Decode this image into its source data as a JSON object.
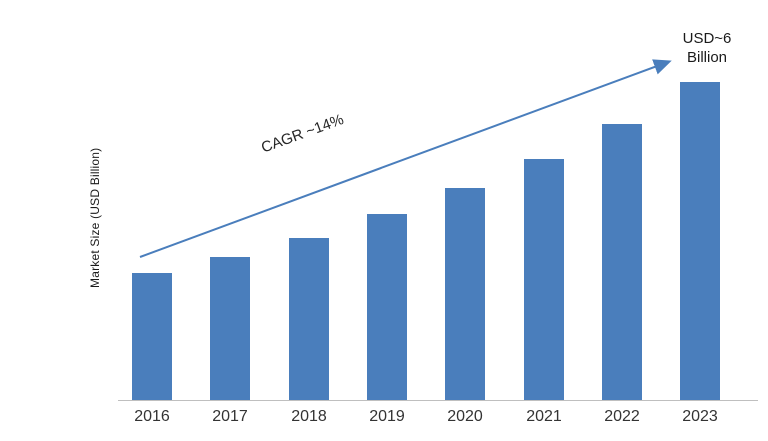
{
  "chart_data": {
    "type": "bar",
    "categories": [
      "2016",
      "2017",
      "2018",
      "2019",
      "2020",
      "2021",
      "2022",
      "2023"
    ],
    "values": [
      2.4,
      2.7,
      3.05,
      3.5,
      4.0,
      4.55,
      5.2,
      6.0
    ],
    "title": "",
    "xlabel": "",
    "ylabel": "Market Size (USD Billion)",
    "ylim": [
      0,
      6.6
    ],
    "grid": false,
    "legend_position": "none",
    "bar_color": "#4a7ebc",
    "arrow_color": "#4a7ebc",
    "annotations": {
      "cagr_label": "CAGR ~14%",
      "end_label_line1": "USD~6",
      "end_label_line2": "Billion"
    }
  }
}
